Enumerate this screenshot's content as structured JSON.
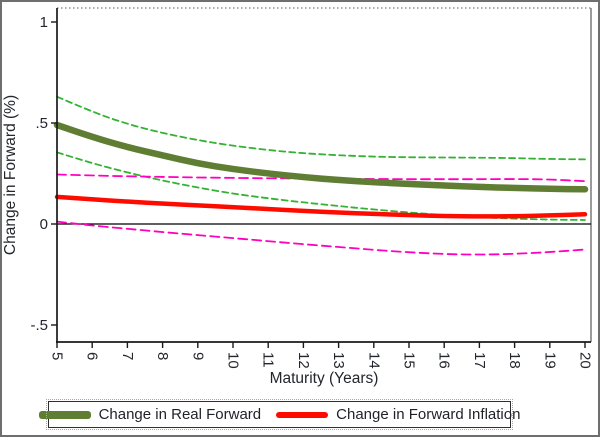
{
  "chart_data": {
    "type": "line",
    "title": "",
    "xlabel": "Maturity (Years)",
    "ylabel": "Change in Forward (%)",
    "x": [
      5,
      6,
      7,
      8,
      9,
      10,
      11,
      12,
      13,
      14,
      15,
      16,
      17,
      18,
      19,
      20
    ],
    "xlim": [
      5,
      20.2
    ],
    "ylim": [
      -0.58,
      1.06
    ],
    "x_tick_labels": [
      "5",
      "6",
      "7",
      "8",
      "9",
      "10",
      "11",
      "12",
      "13",
      "14",
      "15",
      "16",
      "17",
      "18",
      "19",
      "20"
    ],
    "y_ticks": [
      {
        "value": 1,
        "label": "1"
      },
      {
        "value": 0.5,
        "label": ".5"
      },
      {
        "value": 0,
        "label": "0"
      },
      {
        "value": -0.5,
        "label": "-.5"
      }
    ],
    "zero_line": true,
    "grid": false,
    "legend_position": "bottom",
    "colors": {
      "real_forward": "#5f7d33",
      "real_band": "#33b233",
      "inflation": "#fe0b00",
      "inflation_band": "#ff00c0",
      "axis": "#1a1a1a",
      "frame_gray": "#909090",
      "text": "#24262e"
    },
    "series": [
      {
        "name": "Change in Real Forward",
        "role": "mean",
        "color": "#5f7d33",
        "width": 6.5,
        "dash": "",
        "values": [
          0.49,
          0.43,
          0.38,
          0.34,
          0.3,
          0.272,
          0.25,
          0.232,
          0.218,
          0.207,
          0.198,
          0.19,
          0.183,
          0.178,
          0.174,
          0.172
        ]
      },
      {
        "name": "Real Forward CI upper",
        "role": "ci",
        "color": "#33b233",
        "width": 1.8,
        "dash": "6 4",
        "values": [
          0.63,
          0.555,
          0.495,
          0.45,
          0.415,
          0.387,
          0.366,
          0.35,
          0.34,
          0.333,
          0.33,
          0.329,
          0.328,
          0.326,
          0.322,
          0.32
        ]
      },
      {
        "name": "Real Forward CI lower",
        "role": "ci",
        "color": "#33b233",
        "width": 1.8,
        "dash": "6 4",
        "values": [
          0.355,
          0.3,
          0.255,
          0.215,
          0.18,
          0.15,
          0.127,
          0.107,
          0.089,
          0.072,
          0.057,
          0.044,
          0.033,
          0.026,
          0.022,
          0.02
        ]
      },
      {
        "name": "Change in Forward Inflation",
        "role": "mean",
        "color": "#fe0b00",
        "width": 4.5,
        "dash": "",
        "values": [
          0.134,
          0.122,
          0.111,
          0.101,
          0.092,
          0.083,
          0.074,
          0.065,
          0.057,
          0.05,
          0.044,
          0.039,
          0.037,
          0.038,
          0.042,
          0.048
        ]
      },
      {
        "name": "Forward Inflation CI upper",
        "role": "ci",
        "color": "#ff00c0",
        "width": 1.8,
        "dash": "9 5",
        "values": [
          0.245,
          0.24,
          0.236,
          0.233,
          0.23,
          0.228,
          0.226,
          0.225,
          0.224,
          0.223,
          0.222,
          0.222,
          0.222,
          0.223,
          0.221,
          0.212
        ]
      },
      {
        "name": "Forward Inflation CI lower",
        "role": "ci",
        "color": "#ff00c0",
        "width": 1.8,
        "dash": "9 5",
        "values": [
          0.012,
          -0.008,
          -0.024,
          -0.04,
          -0.055,
          -0.07,
          -0.085,
          -0.1,
          -0.114,
          -0.128,
          -0.14,
          -0.149,
          -0.152,
          -0.148,
          -0.139,
          -0.126
        ]
      }
    ],
    "legend": [
      {
        "label": "Change in Real Forward",
        "series": 0
      },
      {
        "label": "Change in Forward Inflation",
        "series": 3
      }
    ]
  }
}
